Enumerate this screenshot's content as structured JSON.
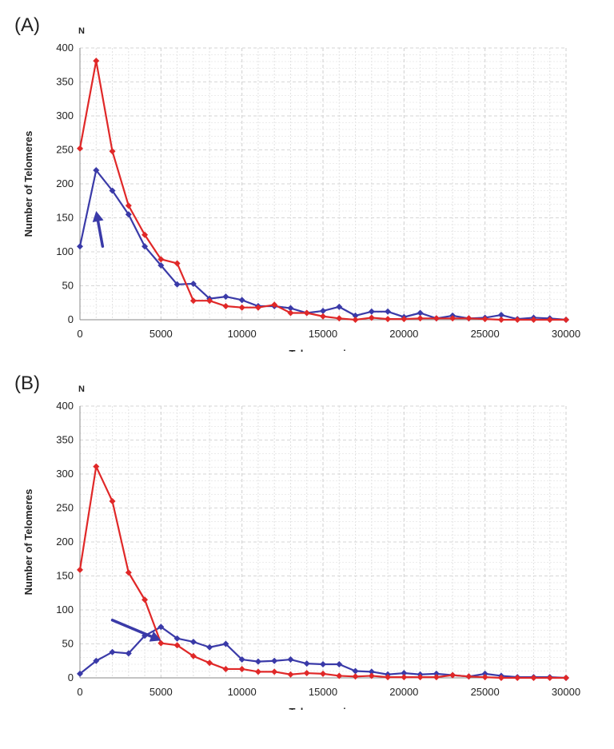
{
  "chart_data": [
    {
      "panel_label": "(A)",
      "type": "line",
      "n_label": "N",
      "xlabel": "Telomere size",
      "ylabel": "Number of Telomeres",
      "xlim": [
        0,
        30000
      ],
      "ylim": [
        0,
        400
      ],
      "xticks": [
        "0",
        "5000",
        "10000",
        "15000",
        "20000",
        "25000",
        "30000"
      ],
      "yticks": [
        "0",
        "50",
        "100",
        "150",
        "200",
        "250",
        "300",
        "350",
        "400"
      ],
      "grid": true,
      "x": [
        0,
        1000,
        2000,
        3000,
        4000,
        5000,
        6000,
        7000,
        8000,
        9000,
        10000,
        11000,
        12000,
        13000,
        14000,
        15000,
        16000,
        17000,
        18000,
        19000,
        20000,
        21000,
        22000,
        23000,
        24000,
        25000,
        26000,
        27000,
        28000,
        29000,
        30000
      ],
      "series": [
        {
          "color": "#3a3aa8",
          "values": [
            108,
            220,
            190,
            155,
            108,
            80,
            52,
            53,
            31,
            34,
            29,
            20,
            20,
            17,
            10,
            13,
            19,
            6,
            12,
            12,
            4,
            10,
            2,
            6,
            2,
            3,
            7,
            1,
            3,
            2,
            0
          ]
        },
        {
          "color": "#e02828",
          "values": [
            252,
            381,
            248,
            168,
            125,
            89,
            83,
            28,
            28,
            20,
            18,
            18,
            22,
            10,
            10,
            5,
            2,
            0,
            3,
            1,
            1,
            2,
            2,
            2,
            2,
            1,
            0,
            0,
            0,
            0,
            0
          ]
        }
      ],
      "annotations": [
        {
          "type": "arrow",
          "color": "#3a3aa8",
          "from": [
            1400,
            108
          ],
          "to": [
            1000,
            160
          ]
        }
      ]
    },
    {
      "panel_label": "(B)",
      "type": "line",
      "n_label": "N",
      "xlabel": "Telomere size",
      "ylabel": "Number of Telomeres",
      "xlim": [
        0,
        30000
      ],
      "ylim": [
        0,
        400
      ],
      "xticks": [
        "0",
        "5000",
        "10000",
        "15000",
        "20000",
        "25000",
        "30000"
      ],
      "yticks": [
        "0",
        "50",
        "100",
        "150",
        "200",
        "250",
        "300",
        "350",
        "400"
      ],
      "grid": true,
      "x": [
        0,
        1000,
        2000,
        3000,
        4000,
        5000,
        6000,
        7000,
        8000,
        9000,
        10000,
        11000,
        12000,
        13000,
        14000,
        15000,
        16000,
        17000,
        18000,
        19000,
        20000,
        21000,
        22000,
        23000,
        24000,
        25000,
        26000,
        27000,
        28000,
        29000,
        30000
      ],
      "series": [
        {
          "color": "#3a3aa8",
          "values": [
            6,
            25,
            38,
            36,
            62,
            75,
            58,
            53,
            45,
            50,
            27,
            24,
            25,
            27,
            21,
            20,
            20,
            10,
            9,
            5,
            7,
            5,
            6,
            4,
            2,
            6,
            3,
            1,
            1,
            1,
            0
          ]
        },
        {
          "color": "#e02828",
          "values": [
            159,
            311,
            260,
            155,
            115,
            51,
            48,
            32,
            22,
            13,
            13,
            9,
            9,
            5,
            7,
            6,
            3,
            2,
            3,
            1,
            1,
            1,
            1,
            4,
            2,
            1,
            0,
            0,
            0,
            0,
            0
          ]
        }
      ],
      "annotations": [
        {
          "type": "arrow",
          "color": "#3a3aa8",
          "from": [
            2000,
            85
          ],
          "to": [
            5000,
            55
          ]
        }
      ]
    }
  ]
}
